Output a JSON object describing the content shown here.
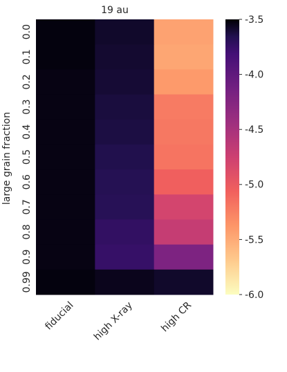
{
  "chart_data": {
    "type": "heatmap",
    "title": "19 au",
    "xlabel": "",
    "ylabel": "large grain fraction",
    "x_categories": [
      "fiducial",
      "high X-ray",
      "high CR"
    ],
    "y_categories": [
      "0.0",
      "0.1",
      "0.2",
      "0.3",
      "0.4",
      "0.5",
      "0.6",
      "0.7",
      "0.8",
      "0.9",
      "0.99"
    ],
    "values": [
      [
        -3.52,
        -3.58,
        -5.45
      ],
      [
        -3.52,
        -3.59,
        -5.47
      ],
      [
        -3.53,
        -3.6,
        -5.4
      ],
      [
        -3.53,
        -3.62,
        -5.22
      ],
      [
        -3.53,
        -3.63,
        -5.2
      ],
      [
        -3.53,
        -3.65,
        -5.18
      ],
      [
        -3.53,
        -3.67,
        -5.05
      ],
      [
        -3.53,
        -3.68,
        -4.8
      ],
      [
        -3.53,
        -3.73,
        -4.7
      ],
      [
        -3.53,
        -3.75,
        -4.2
      ],
      [
        -3.52,
        -3.55,
        -3.58
      ]
    ],
    "colorbar": {
      "colormap": "magma",
      "range": [
        -6.0,
        -3.5
      ],
      "ticks": [
        "-3.5",
        "-4.0",
        "-4.5",
        "-5.0",
        "-5.5",
        "-6.0"
      ],
      "tick_values": [
        -3.5,
        -4.0,
        -4.5,
        -5.0,
        -5.5,
        -6.0
      ]
    },
    "grid": false,
    "legend": "colorbar-right"
  }
}
